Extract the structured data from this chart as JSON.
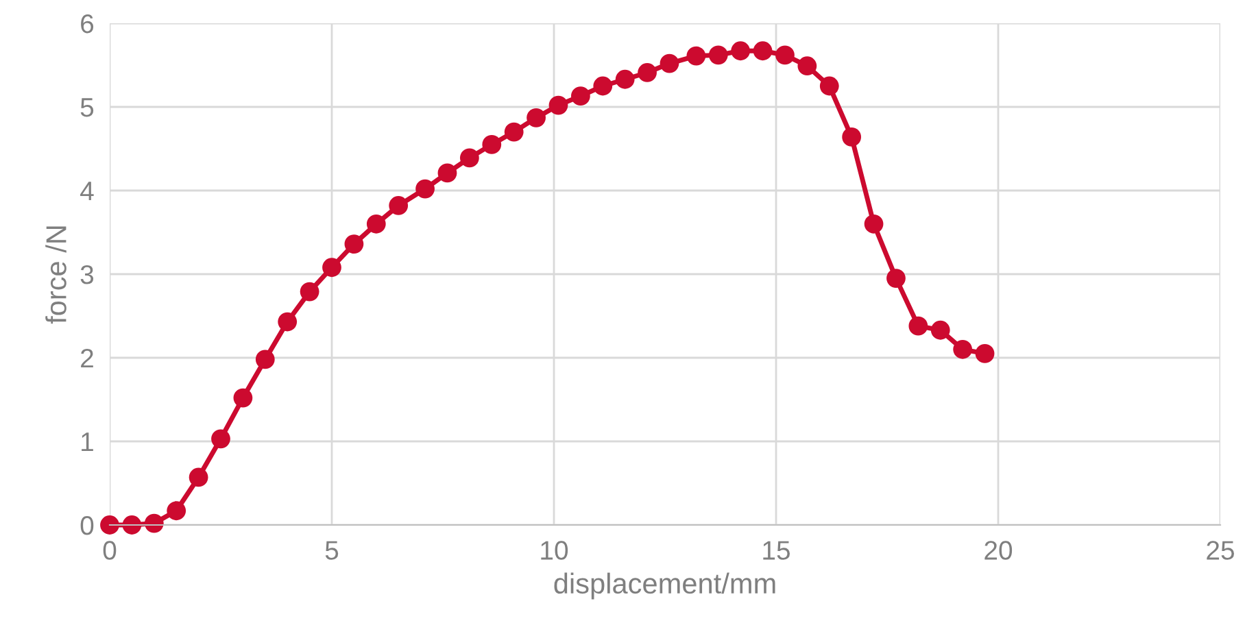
{
  "chart_data": {
    "type": "line",
    "xlabel": "displacement/mm",
    "ylabel": "force /N",
    "x": [
      0,
      0.5,
      1.0,
      1.5,
      2.0,
      2.5,
      3.0,
      3.5,
      4.0,
      4.5,
      5.0,
      5.5,
      6.0,
      6.5,
      7.1,
      7.6,
      8.1,
      8.6,
      9.1,
      9.6,
      10.1,
      10.6,
      11.1,
      11.6,
      12.1,
      12.6,
      13.2,
      13.7,
      14.2,
      14.7,
      15.2,
      15.7,
      16.2,
      16.7,
      17.2,
      17.7,
      18.2,
      18.7,
      19.2,
      19.7
    ],
    "series": [
      {
        "color": "#cc0a2f",
        "values": [
          0,
          0,
          0.02,
          0.17,
          0.57,
          1.03,
          1.52,
          1.98,
          2.43,
          2.79,
          3.08,
          3.36,
          3.6,
          3.82,
          4.02,
          4.21,
          4.39,
          4.55,
          4.7,
          4.87,
          5.02,
          5.13,
          5.25,
          5.33,
          5.41,
          5.52,
          5.61,
          5.62,
          5.67,
          5.67,
          5.62,
          5.49,
          5.25,
          4.64,
          3.6,
          2.95,
          2.38,
          2.33,
          2.1,
          2.05
        ]
      }
    ],
    "xlim": [
      0,
      25
    ],
    "ylim": [
      0,
      6
    ],
    "xticks": [
      0,
      5,
      10,
      15,
      20,
      25
    ],
    "yticks": [
      0,
      1,
      2,
      3,
      4,
      5,
      6
    ],
    "grid": true,
    "marker": "circle",
    "line_style": "solid"
  }
}
